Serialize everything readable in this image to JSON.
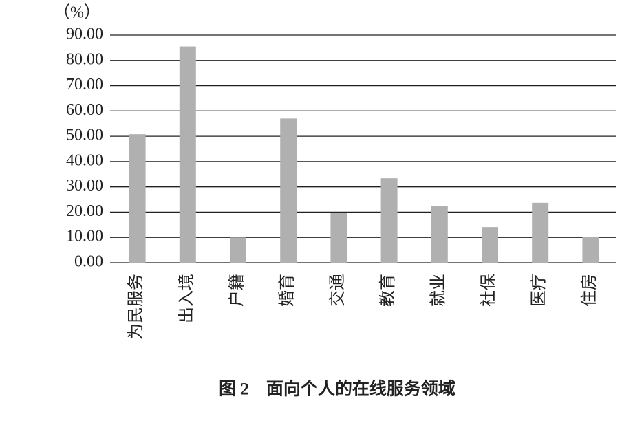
{
  "chart_data": {
    "type": "bar",
    "caption": "图 2　面向个人的在线服务领域",
    "y_axis_label": "（%）",
    "categories": [
      "为民服务",
      "出入境",
      "户籍",
      "婚育",
      "交通",
      "教育",
      "就业",
      "社保",
      "医疗",
      "住房"
    ],
    "values": [
      50.8,
      85.5,
      10,
      57,
      19.6,
      33.4,
      22.3,
      14.1,
      23.7,
      10.3
    ],
    "color": "#b0b0b0",
    "ylim": [
      0,
      90
    ],
    "yticks": [
      {
        "value": 0,
        "label": "0.00"
      },
      {
        "value": 10,
        "label": "10.00"
      },
      {
        "value": 20,
        "label": "20.00"
      },
      {
        "value": 30,
        "label": "30.00"
      },
      {
        "value": 40,
        "label": "40.00"
      },
      {
        "value": 50,
        "label": "50.00"
      },
      {
        "value": 60,
        "label": "60.00"
      },
      {
        "value": 70,
        "label": "70.00"
      },
      {
        "value": 80,
        "label": "80.00"
      },
      {
        "value": 90,
        "label": "90.00"
      }
    ],
    "grid": true
  }
}
